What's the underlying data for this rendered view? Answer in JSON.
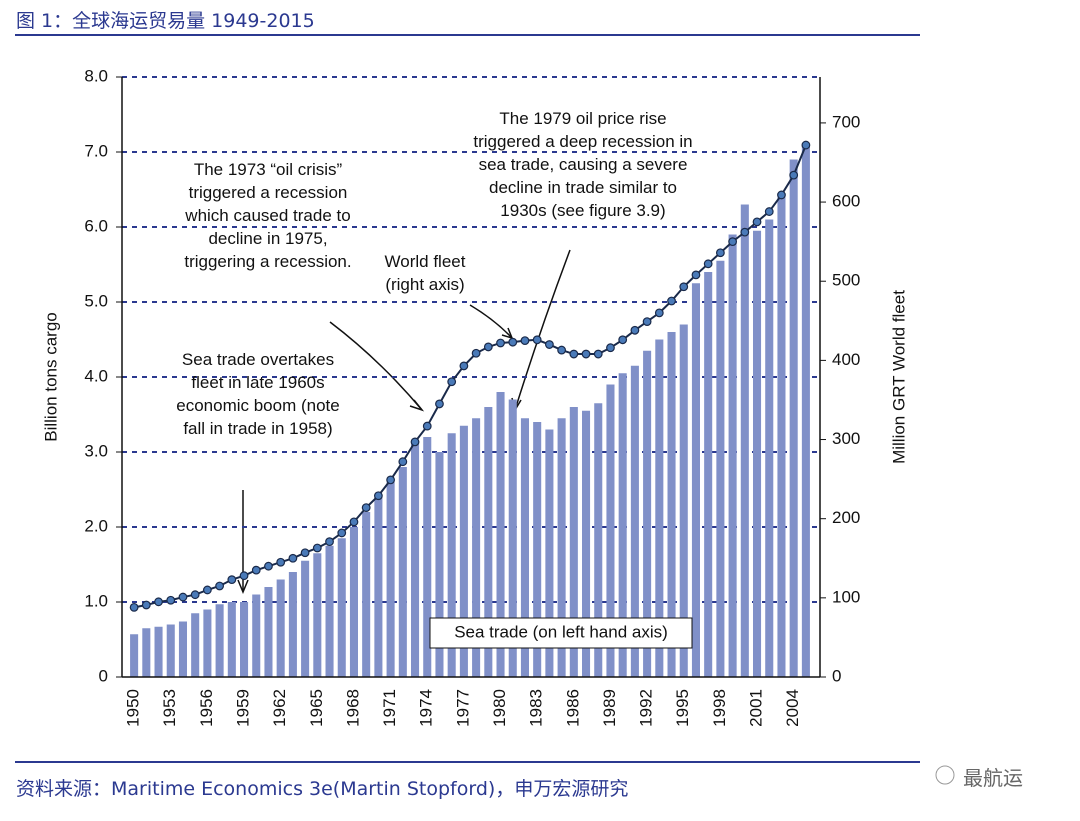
{
  "header": {
    "title": "图 1：全球海运贸易量 1949-2015"
  },
  "chart_data": {
    "type": "bar-line",
    "categories": [
      1950,
      null,
      null,
      1953,
      null,
      null,
      1956,
      null,
      null,
      1959,
      null,
      null,
      1962,
      null,
      null,
      1965,
      null,
      null,
      1968,
      null,
      null,
      1971,
      null,
      null,
      1974,
      null,
      null,
      1977,
      null,
      null,
      1980,
      null,
      null,
      1983,
      null,
      null,
      1986,
      null,
      null,
      1989,
      null,
      null,
      1992,
      null,
      null,
      1995,
      null,
      null,
      1998,
      null,
      null,
      2001,
      null,
      null,
      2004,
      null
    ],
    "series": [
      {
        "name": "Sea trade (on left hand axis)",
        "type": "bar",
        "color": "#8090c8",
        "values": [
          0.57,
          0.65,
          0.67,
          0.7,
          0.74,
          0.85,
          0.9,
          0.97,
          1.0,
          1.0,
          1.1,
          1.2,
          1.3,
          1.4,
          1.55,
          1.65,
          1.75,
          1.85,
          2.0,
          2.2,
          2.4,
          2.6,
          2.8,
          3.15,
          3.2,
          3.0,
          3.25,
          3.35,
          3.45,
          3.6,
          3.8,
          3.7,
          3.45,
          3.4,
          3.3,
          3.45,
          3.6,
          3.55,
          3.65,
          3.9,
          4.05,
          4.15,
          4.35,
          4.5,
          4.6,
          4.7,
          5.25,
          5.4,
          5.55,
          5.9,
          6.3,
          5.95,
          6.1,
          6.4,
          6.9,
          7.1
        ]
      },
      {
        "name": "World fleet (right axis)",
        "type": "line",
        "axis": "y2",
        "color": "#1a2a4a",
        "marker_color": "#4a7ab8",
        "values": [
          88,
          91,
          95,
          97,
          101,
          104,
          110,
          115,
          123,
          128,
          135,
          140,
          145,
          150,
          157,
          163,
          171,
          182,
          196,
          214,
          229,
          249,
          272,
          297,
          317,
          345,
          373,
          393,
          409,
          417,
          422,
          423,
          425,
          426,
          420,
          413,
          408,
          408,
          408,
          416,
          426,
          438,
          449,
          460,
          475,
          493,
          508,
          522,
          536,
          550,
          562,
          575,
          588,
          609,
          634,
          672
        ]
      }
    ],
    "ylabel": "Billion tons cargo",
    "y2label": "Million GRT World fleet",
    "ylim": [
      0,
      8
    ],
    "yticks": [
      0,
      {
        "value": 1,
        "label": "1.0"
      },
      {
        "value": 2,
        "label": "2.0"
      },
      {
        "value": 3,
        "label": "3.0"
      },
      {
        "value": 4,
        "label": "4.0"
      },
      {
        "value": 5,
        "label": "5.0"
      },
      {
        "value": 6,
        "label": "6.0"
      },
      {
        "value": 7,
        "label": "7.0"
      },
      {
        "value": 8,
        "label": "8.0"
      }
    ],
    "y2lim": [
      0,
      758
    ],
    "y2ticks": [
      0,
      100,
      200,
      300,
      400,
      500,
      600,
      700
    ],
    "grid": true,
    "annotations": [
      "The 1973 “oil crisis” triggered a recession which caused trade to decline in 1975, triggering a recession.",
      "Sea trade overtakes fleet in late 1960s economic boom (note fall in trade in 1958)",
      "The 1979 oil price rise triggered a deep recession in sea trade, causing a severe decline in trade similar to 1930s (see figure 3.9)"
    ]
  },
  "footer": {
    "source": "资料来源：Maritime Economics 3e(Martin Stopford)，申万宏源研究",
    "watermark": "最航运"
  }
}
